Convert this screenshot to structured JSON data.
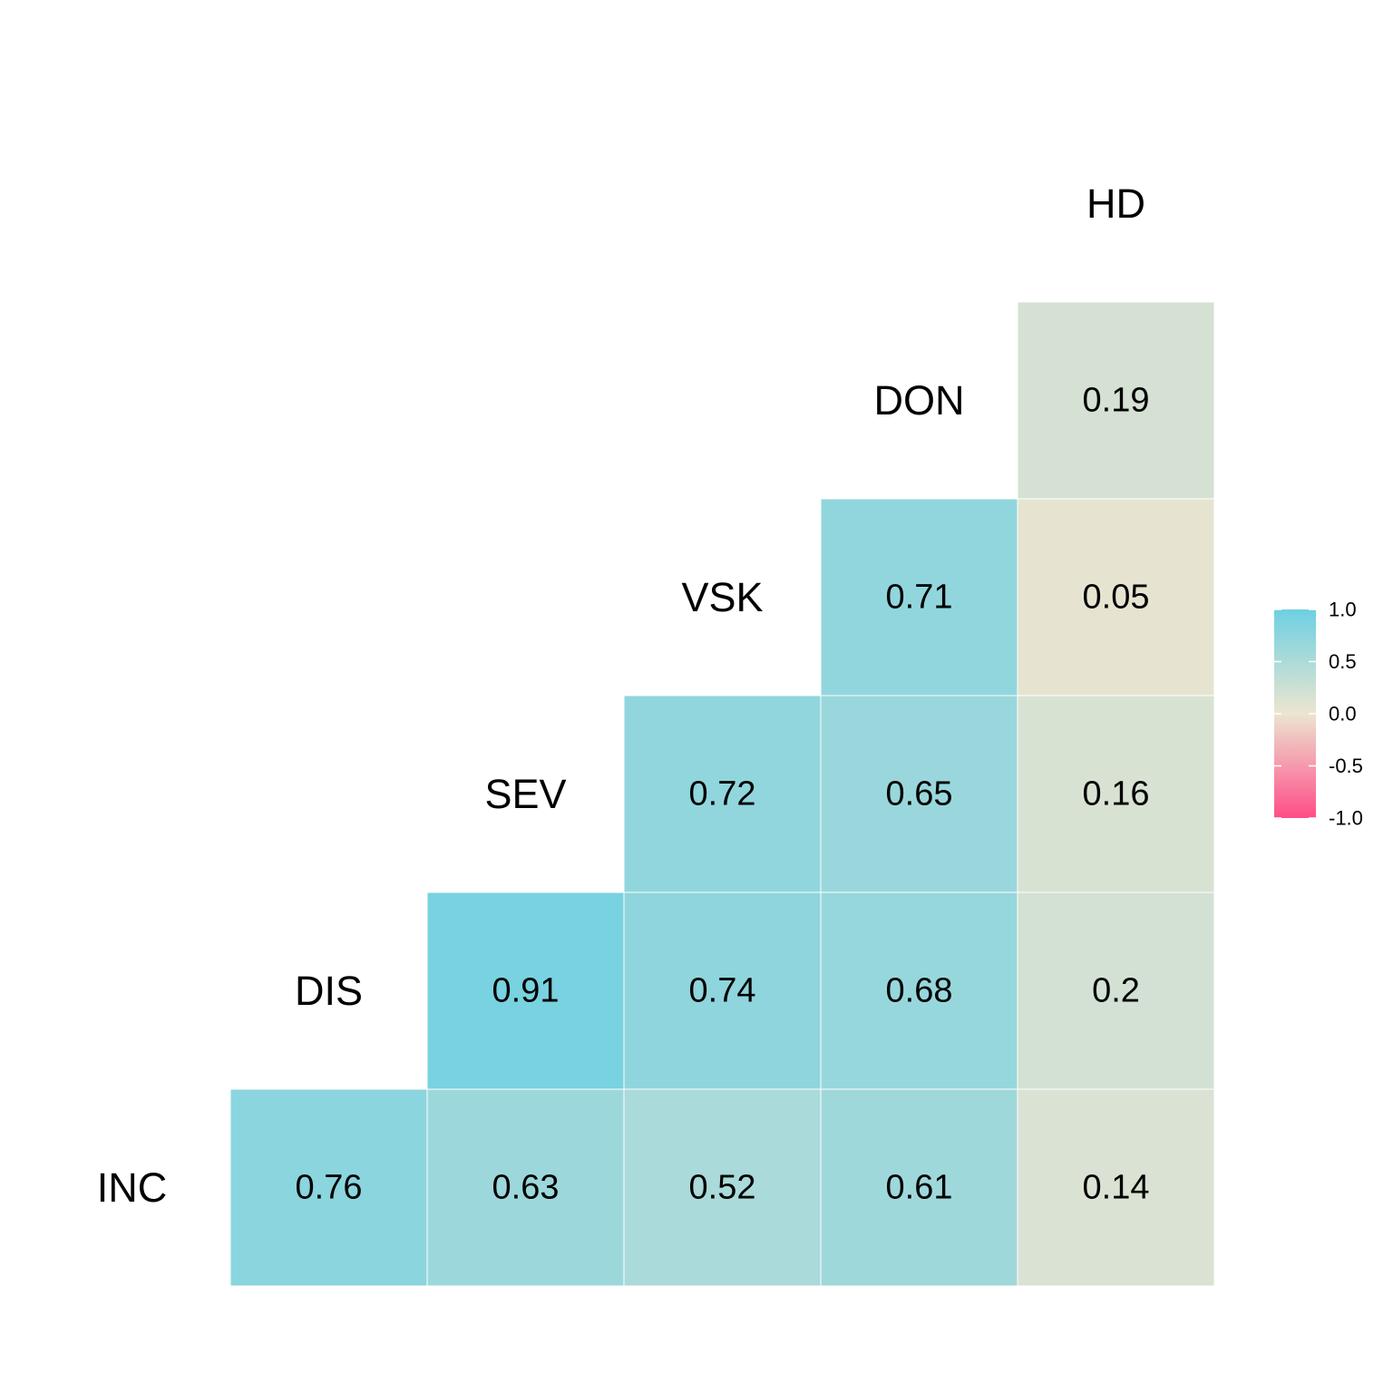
{
  "chart_data": {
    "type": "heatmap",
    "variables": [
      "INC",
      "DIS",
      "SEV",
      "VSK",
      "DON",
      "HD"
    ],
    "cells": [
      {
        "row": "INC",
        "col": "DIS",
        "value": 0.76,
        "label": "0.76"
      },
      {
        "row": "INC",
        "col": "SEV",
        "value": 0.63,
        "label": "0.63"
      },
      {
        "row": "INC",
        "col": "VSK",
        "value": 0.52,
        "label": "0.52"
      },
      {
        "row": "INC",
        "col": "DON",
        "value": 0.61,
        "label": "0.61"
      },
      {
        "row": "INC",
        "col": "HD",
        "value": 0.14,
        "label": "0.14"
      },
      {
        "row": "DIS",
        "col": "SEV",
        "value": 0.91,
        "label": "0.91"
      },
      {
        "row": "DIS",
        "col": "VSK",
        "value": 0.74,
        "label": "0.74"
      },
      {
        "row": "DIS",
        "col": "DON",
        "value": 0.68,
        "label": "0.68"
      },
      {
        "row": "DIS",
        "col": "HD",
        "value": 0.2,
        "label": "0.2"
      },
      {
        "row": "SEV",
        "col": "VSK",
        "value": 0.72,
        "label": "0.72"
      },
      {
        "row": "SEV",
        "col": "DON",
        "value": 0.65,
        "label": "0.65"
      },
      {
        "row": "SEV",
        "col": "HD",
        "value": 0.16,
        "label": "0.16"
      },
      {
        "row": "VSK",
        "col": "DON",
        "value": 0.71,
        "label": "0.71"
      },
      {
        "row": "VSK",
        "col": "HD",
        "value": 0.05,
        "label": "0.05"
      },
      {
        "row": "DON",
        "col": "HD",
        "value": 0.19,
        "label": "0.19"
      }
    ],
    "color_scale": {
      "limits": [
        -1.0,
        1.0
      ],
      "low": "#ff4d88",
      "mid": "#ece5d0",
      "high": "#6dd0e2"
    },
    "legend": {
      "placement": "right",
      "ticks": [
        "1.0",
        "0.5",
        "0.0",
        "-0.5",
        "-1.0"
      ],
      "tick_values": [
        1.0,
        0.5,
        0.0,
        -0.5,
        -1.0
      ]
    },
    "grid": false,
    "title": "",
    "xlabel": "",
    "ylabel": ""
  }
}
